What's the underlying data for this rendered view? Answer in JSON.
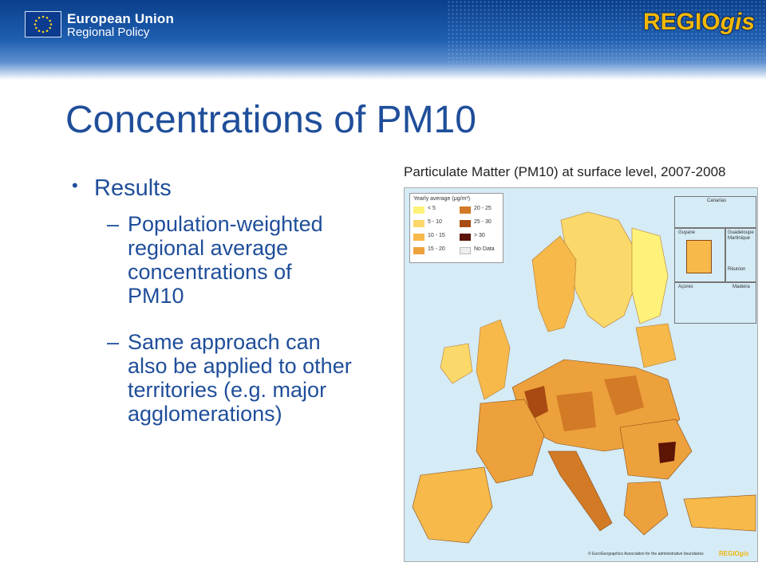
{
  "header": {
    "org_title": "European Union",
    "org_subtitle": "Regional Policy",
    "logo_main": "REGIO",
    "logo_suffix": "gis",
    "colors": {
      "band": "#1f5fb0",
      "logo": "#f2b705"
    }
  },
  "slide": {
    "title": "Concentrations of PM10",
    "bullet": "Results",
    "subbullets": [
      [
        "Population-weighted",
        "regional average",
        "concentrations of",
        "PM10"
      ],
      [
        "Same approach can",
        "also be applied to other",
        "territories (e.g. major",
        "agglomerations)"
      ]
    ],
    "text_color": "#1f4e9a"
  },
  "map": {
    "title": "Particulate Matter (PM10) at surface level, 2007-2008",
    "legend": {
      "title": "Yearly average (μg/m³)",
      "items": [
        {
          "label": "< 5",
          "color": "#fff27a"
        },
        {
          "label": "5 - 10",
          "color": "#fbd86a"
        },
        {
          "label": "10 - 15",
          "color": "#f6b94a"
        },
        {
          "label": "15 - 20",
          "color": "#eda13c"
        },
        {
          "label": "20 - 25",
          "color": "#d27a26"
        },
        {
          "label": "25 - 30",
          "color": "#a94a12"
        },
        {
          "label": "> 30",
          "color": "#5c1405"
        },
        {
          "label": "No Data",
          "color": "#eeeeee"
        }
      ]
    },
    "insets": [
      "Canarias",
      "Guyane",
      "Guadeloupe",
      "Martinique",
      "Réunion",
      "Açores",
      "Madeira"
    ],
    "copyright": "© EuroGeographics Association for the administrative boundaries",
    "logo_main": "REGIO",
    "logo_suffix": "gis"
  }
}
